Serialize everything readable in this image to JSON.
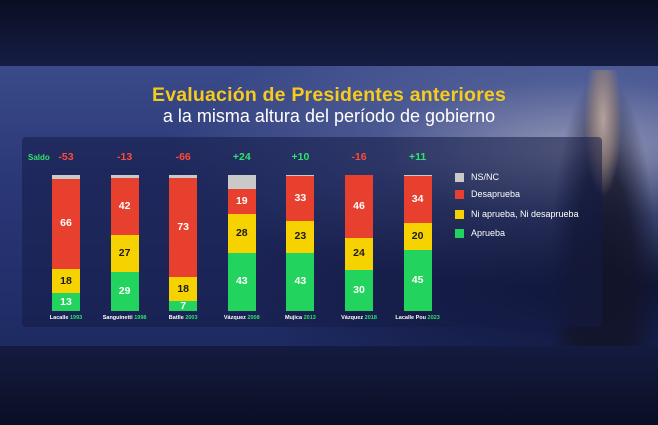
{
  "title": "Evaluación de Presidentes anteriores",
  "subtitle": "a la misma altura del período de gobierno",
  "chart_data": {
    "type": "bar",
    "stacked": true,
    "title": "Evaluación de Presidentes anteriores",
    "subtitle": "a la misma altura del período de gobierno",
    "saldo_label": "Saldo",
    "categories": [
      {
        "name": "Lacalle",
        "year": "1993"
      },
      {
        "name": "Sanguinetti",
        "year": "1998"
      },
      {
        "name": "Batlle",
        "year": "2003"
      },
      {
        "name": "Vázquez",
        "year": "2008"
      },
      {
        "name": "Mujica",
        "year": "2013"
      },
      {
        "name": "Vázquez",
        "year": "2018"
      },
      {
        "name": "Lacalle Pou",
        "year": "2023"
      }
    ],
    "saldo": [
      "-53",
      "-13",
      "-66",
      "+24",
      "+10",
      "-16",
      "+11"
    ],
    "series": [
      {
        "name": "Aprueba",
        "color": "#22d35e",
        "values": [
          13,
          29,
          7,
          43,
          43,
          30,
          45
        ]
      },
      {
        "name": "Ni aprueba, Ni desaprueba",
        "color": "#f6d300",
        "values": [
          18,
          27,
          18,
          28,
          23,
          24,
          20
        ]
      },
      {
        "name": "Desaprueba",
        "color": "#e8402f",
        "values": [
          66,
          42,
          73,
          19,
          33,
          46,
          34
        ]
      },
      {
        "name": "NS/NC",
        "color": "#c9c9c9",
        "values": [
          3,
          2,
          2,
          10,
          1,
          0,
          1
        ]
      }
    ],
    "legend": [
      "NS/NC",
      "Desaprueba",
      "Ni aprueba, Ni desaprueba",
      "Aprueba"
    ],
    "ylim": [
      0,
      100
    ]
  }
}
